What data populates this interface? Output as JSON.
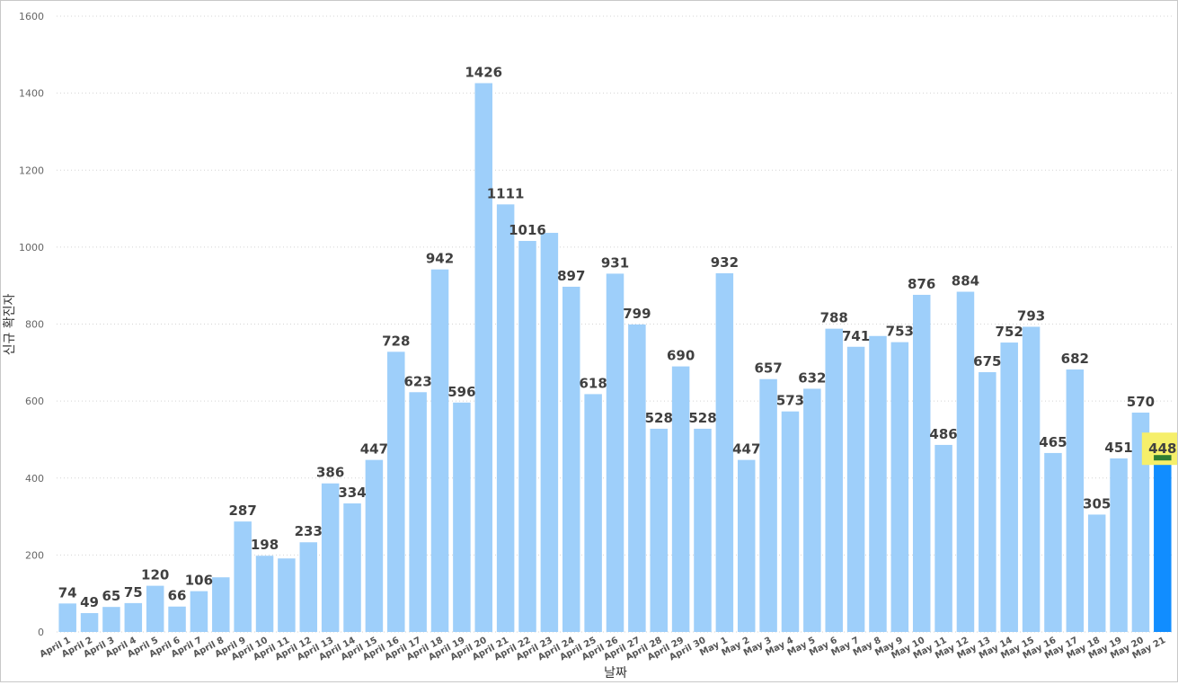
{
  "chart_data": {
    "type": "bar",
    "ylabel": "신규 확진자",
    "xlabel": "날짜",
    "ylim": [
      0,
      1600
    ],
    "yticks": [
      0,
      200,
      400,
      600,
      800,
      1000,
      1200,
      1400,
      1600
    ],
    "grid": true,
    "categories": [
      "April 1",
      "April 2",
      "April 3",
      "April 4",
      "April 5",
      "April 6",
      "April 7",
      "April 8",
      "April 9",
      "April 10",
      "April 11",
      "April 12",
      "April 13",
      "April 14",
      "April 15",
      "April 16",
      "April 17",
      "April 18",
      "April 19",
      "April 20",
      "April 21",
      "April 22",
      "April 23",
      "April 24",
      "April 25",
      "April 26",
      "April 27",
      "April 28",
      "April 29",
      "April 30",
      "May 1",
      "May 2",
      "May 3",
      "May 4",
      "May 5",
      "May 6",
      "May 7",
      "May 8",
      "May 9",
      "May 10",
      "May 11",
      "May 12",
      "May 13",
      "May 14",
      "May 15",
      "May 16",
      "May 17",
      "May 18",
      "May 19",
      "May 20",
      "May 21"
    ],
    "values": [
      74,
      49,
      65,
      75,
      120,
      66,
      106,
      142,
      287,
      198,
      191,
      233,
      386,
      334,
      447,
      728,
      623,
      942,
      596,
      1426,
      1111,
      1016,
      1037,
      897,
      618,
      931,
      799,
      528,
      690,
      528,
      932,
      447,
      657,
      573,
      632,
      788,
      741,
      769,
      753,
      876,
      486,
      884,
      675,
      752,
      793,
      465,
      682,
      305,
      451,
      570,
      448
    ],
    "data_labels": [
      "74",
      "49",
      "65",
      "75",
      "120",
      "66",
      "106",
      "",
      "287",
      "198",
      "",
      "233",
      "386",
      "334",
      "447",
      "728",
      "623",
      "942",
      "596",
      "1426",
      "1111",
      "1016",
      "",
      "897",
      "618",
      "931",
      "799",
      "528",
      "690",
      "528",
      "932",
      "447",
      "657",
      "573",
      "632",
      "788",
      "741",
      "",
      "753",
      "876",
      "486",
      "884",
      "675",
      "752",
      "793",
      "465",
      "682",
      "305",
      "451",
      "570",
      "448"
    ],
    "highlight_index": 50,
    "colors": {
      "bar": "#9ecffa",
      "highlight_bar": "#118dff",
      "highlight_cap": "#2e7d32",
      "highlight_label_bg": "#f6ef6a"
    }
  }
}
